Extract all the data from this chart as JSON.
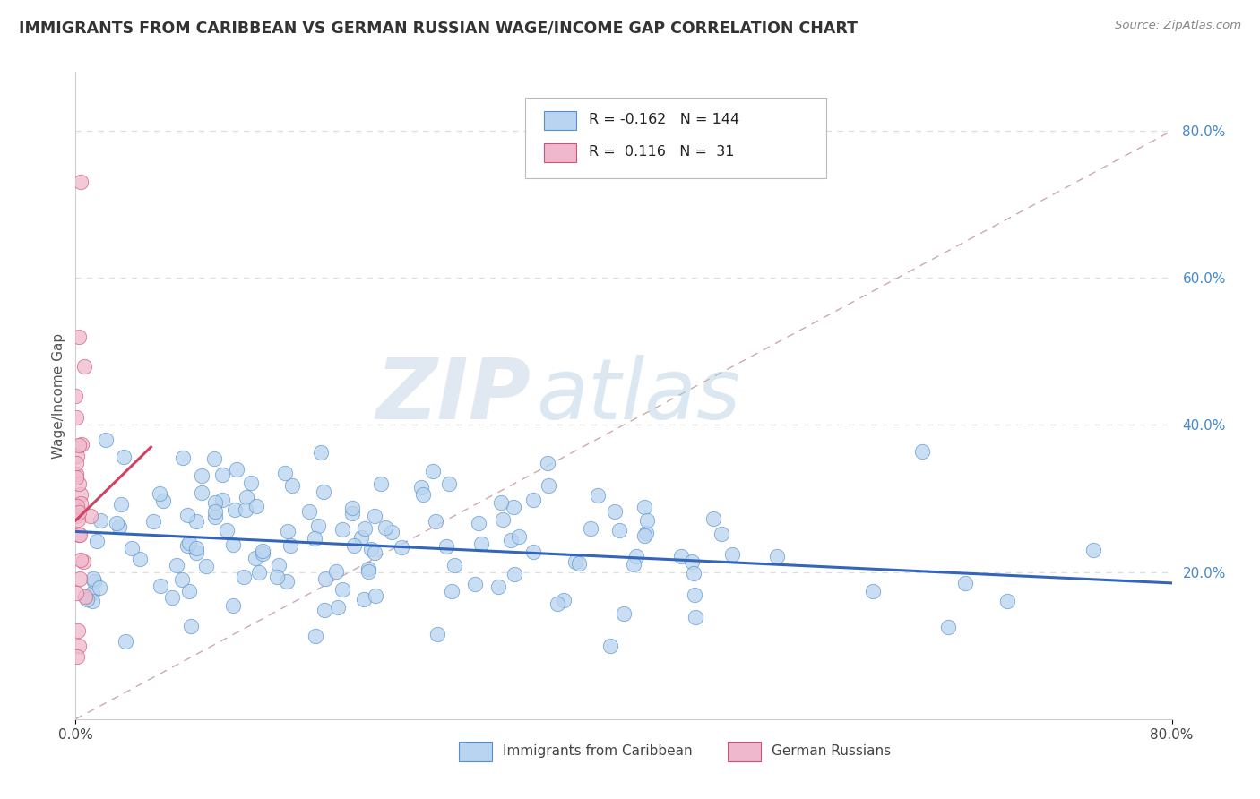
{
  "title": "IMMIGRANTS FROM CARIBBEAN VS GERMAN RUSSIAN WAGE/INCOME GAP CORRELATION CHART",
  "source": "Source: ZipAtlas.com",
  "ylabel": "Wage/Income Gap",
  "right_yticks": [
    "80.0%",
    "60.0%",
    "40.0%",
    "20.0%"
  ],
  "right_ytick_vals": [
    0.8,
    0.6,
    0.4,
    0.2
  ],
  "legend_label1": "Immigrants from Caribbean",
  "legend_label2": "German Russians",
  "R1": "-0.162",
  "N1": "144",
  "R2": "0.116",
  "N2": "31",
  "color_caribbean": "#b8d4f0",
  "color_german": "#f0b8cc",
  "edge_caribbean": "#5590cc",
  "edge_german": "#cc5577",
  "trendline_caribbean": "#3366bb",
  "trendline_german": "#cc4466",
  "ref_line_color": "#ccaaaa",
  "grid_color": "#dddddd",
  "watermark_zip": "ZIP",
  "watermark_atlas": "atlas",
  "xmin": 0.0,
  "xmax": 0.8,
  "ymin": 0.0,
  "ymax": 0.88,
  "trend_carib_x0": 0.0,
  "trend_carib_x1": 0.8,
  "trend_carib_y0": 0.255,
  "trend_carib_y1": 0.185,
  "trend_german_x0": 0.0,
  "trend_german_x1": 0.055,
  "trend_german_y0": 0.27,
  "trend_german_y1": 0.37
}
